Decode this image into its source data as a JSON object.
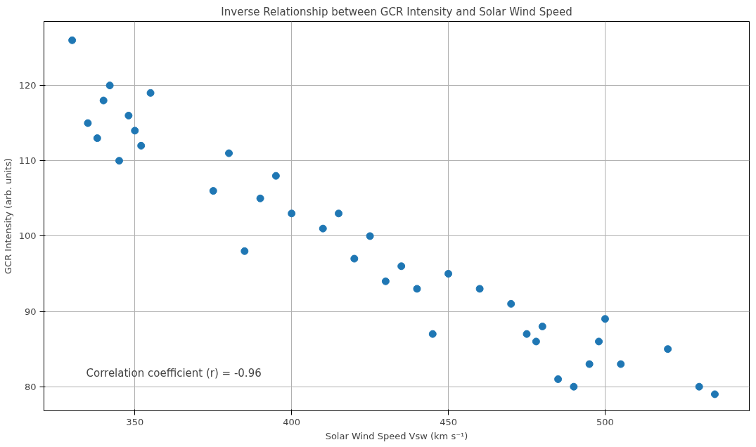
{
  "chart_data": {
    "type": "scatter",
    "title": "Inverse Relationship between GCR Intensity and Solar Wind Speed",
    "xlabel": "Solar Wind Speed Vsw (km s⁻¹)",
    "ylabel": "GCR Intensity (arb. units)",
    "x": [
      330,
      335,
      338,
      340,
      342,
      345,
      348,
      350,
      352,
      355,
      375,
      380,
      385,
      390,
      395,
      400,
      410,
      415,
      420,
      425,
      430,
      435,
      440,
      445,
      450,
      460,
      470,
      475,
      478,
      480,
      485,
      490,
      495,
      498,
      500,
      505,
      520,
      530,
      535
    ],
    "series": [
      {
        "color": "#1f77b4",
        "values": [
          126,
          115,
          113,
          118,
          120,
          110,
          116,
          114,
          112,
          119,
          106,
          111,
          98,
          105,
          108,
          103,
          101,
          103,
          97,
          100,
          94,
          96,
          93,
          87,
          95,
          93,
          91,
          87,
          86,
          88,
          81,
          80,
          83,
          86,
          89,
          83,
          85,
          80,
          79
        ]
      }
    ],
    "xlim": [
      321,
      546
    ],
    "ylim": [
      76.8,
      128.5
    ],
    "xticks": [
      350,
      400,
      450,
      500
    ],
    "yticks": [
      80,
      90,
      100,
      110,
      120
    ],
    "grid": true,
    "marker": "circle",
    "annotations": [
      "Correlation coefficient (r) = -0.96"
    ]
  }
}
